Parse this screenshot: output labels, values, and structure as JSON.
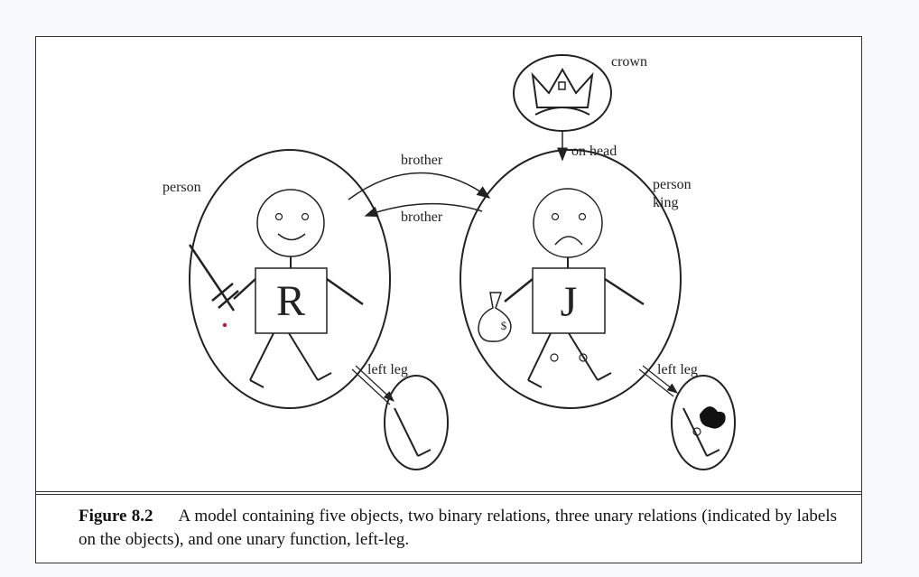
{
  "diagram": {
    "labels": {
      "crown": "crown",
      "on_head": "on head",
      "brother_top": "brother",
      "brother_bottom": "brother",
      "person_left": "person",
      "person_right": "person",
      "king": "king",
      "left_leg_left": "left leg",
      "left_leg_right": "left leg",
      "r_letter": "R",
      "j_letter": "J",
      "dollar": "$"
    }
  },
  "caption": {
    "figure_label": "Figure 8.2",
    "text": "A model containing five objects, two binary relations, three unary relations (indicated by labels on the objects), and one unary function, left-leg."
  }
}
